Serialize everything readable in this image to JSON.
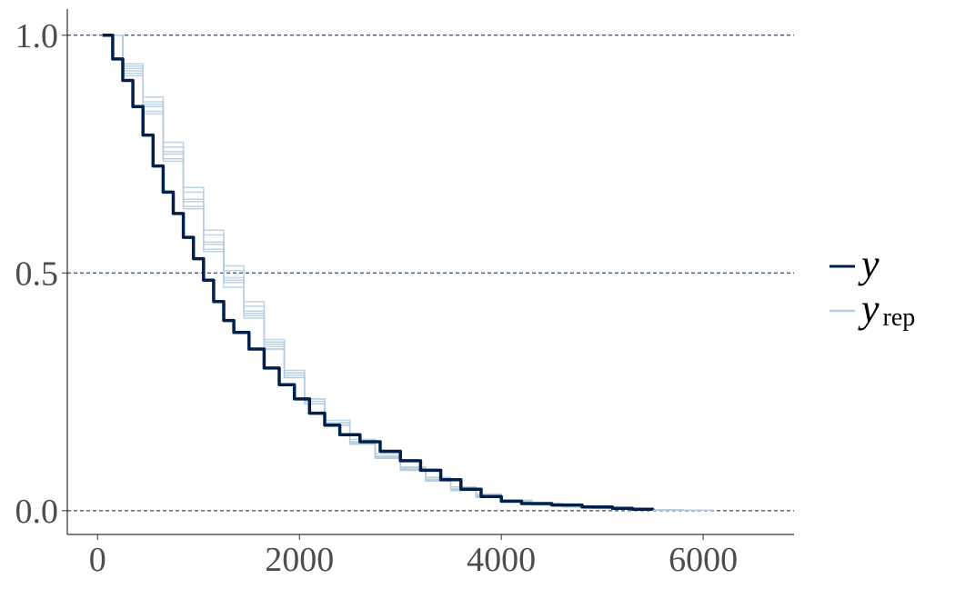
{
  "chart_data": {
    "type": "line",
    "title": "",
    "xlabel": "",
    "ylabel": "",
    "xlim": [
      -300,
      6900
    ],
    "ylim": [
      -0.05,
      1.055
    ],
    "x_ticks": [
      0,
      2000,
      4000,
      6000
    ],
    "x_tick_labels": [
      "0",
      "2000",
      "4000",
      "6000"
    ],
    "y_ticks": [
      0.0,
      0.5,
      1.0
    ],
    "y_tick_labels": [
      "0.0",
      "0.5",
      "1.0"
    ],
    "hlines": [
      0.0,
      0.5,
      1.0
    ],
    "hline_style": "dashed",
    "grid": false,
    "legend_position": "right",
    "colors": {
      "y": "#011f4b",
      "yrep": "#b3cde0",
      "hline": "#011f4b",
      "axis": "#000000",
      "tick_text": "#4d4d4d"
    },
    "legend": [
      {
        "key": "y",
        "label_main": "y",
        "label_sub": ""
      },
      {
        "key": "yrep",
        "label_main": "y",
        "label_sub": "rep"
      }
    ],
    "series": [
      {
        "key": "y",
        "x": [
          50,
          150,
          250,
          350,
          450,
          550,
          650,
          750,
          850,
          950,
          1050,
          1150,
          1250,
          1350,
          1500,
          1650,
          1800,
          1950,
          2100,
          2250,
          2400,
          2600,
          2800,
          3000,
          3200,
          3400,
          3600,
          3800,
          4000,
          4200,
          4500,
          4800,
          5100,
          5300,
          5500
        ],
        "y": [
          1.0,
          0.95,
          0.905,
          0.85,
          0.79,
          0.725,
          0.67,
          0.625,
          0.575,
          0.53,
          0.485,
          0.44,
          0.4,
          0.375,
          0.34,
          0.3,
          0.265,
          0.235,
          0.205,
          0.18,
          0.16,
          0.145,
          0.125,
          0.105,
          0.085,
          0.065,
          0.045,
          0.03,
          0.02,
          0.015,
          0.012,
          0.008,
          0.005,
          0.003,
          0.002
        ]
      },
      {
        "key": "yrep",
        "x": [
          50,
          250,
          450,
          650,
          850,
          1050,
          1250,
          1450,
          1650,
          1850,
          2050,
          2250,
          2500,
          2750,
          3000,
          3250,
          3500,
          3750,
          4000,
          4300,
          4600,
          4900,
          5200,
          5500,
          5800,
          6100
        ],
        "y": [
          1.0,
          0.92,
          0.84,
          0.74,
          0.64,
          0.55,
          0.48,
          0.41,
          0.34,
          0.28,
          0.225,
          0.18,
          0.14,
          0.115,
          0.085,
          0.065,
          0.045,
          0.03,
          0.02,
          0.013,
          0.009,
          0.006,
          0.003,
          0.002,
          0.001,
          0.0
        ]
      },
      {
        "key": "yrep",
        "x": [
          50,
          250,
          450,
          650,
          850,
          1050,
          1250,
          1450,
          1650,
          1850,
          2050,
          2250,
          2500,
          2750,
          3000,
          3250,
          3500,
          3750,
          4000,
          4300,
          4600,
          4900,
          5200,
          5500,
          5800,
          6100
        ],
        "y": [
          1.0,
          0.935,
          0.86,
          0.765,
          0.67,
          0.58,
          0.505,
          0.43,
          0.355,
          0.29,
          0.23,
          0.185,
          0.145,
          0.115,
          0.09,
          0.07,
          0.05,
          0.035,
          0.022,
          0.015,
          0.01,
          0.006,
          0.004,
          0.002,
          0.001,
          0.0
        ]
      },
      {
        "key": "yrep",
        "x": [
          50,
          250,
          450,
          650,
          850,
          1050,
          1250,
          1450,
          1650,
          1850,
          2050,
          2250,
          2500,
          2750,
          3000,
          3250,
          3500,
          3750,
          4000,
          4300,
          4600,
          4900,
          5200,
          5500,
          5800
        ],
        "y": [
          1.0,
          0.93,
          0.855,
          0.755,
          0.655,
          0.565,
          0.49,
          0.42,
          0.345,
          0.285,
          0.225,
          0.18,
          0.14,
          0.11,
          0.085,
          0.062,
          0.042,
          0.028,
          0.018,
          0.012,
          0.008,
          0.005,
          0.003,
          0.001,
          0.0
        ]
      },
      {
        "key": "yrep",
        "x": [
          50,
          250,
          450,
          650,
          850,
          1050,
          1250,
          1450,
          1650,
          1850,
          2050,
          2250,
          2500,
          2750,
          3000,
          3250,
          3500,
          3750,
          4000,
          4300,
          4600,
          4900,
          5200,
          5500,
          5800
        ],
        "y": [
          1.0,
          0.925,
          0.85,
          0.75,
          0.65,
          0.56,
          0.485,
          0.415,
          0.35,
          0.29,
          0.235,
          0.19,
          0.15,
          0.12,
          0.092,
          0.07,
          0.05,
          0.033,
          0.021,
          0.014,
          0.009,
          0.006,
          0.003,
          0.002,
          0.0
        ]
      },
      {
        "key": "yrep",
        "x": [
          50,
          250,
          450,
          650,
          850,
          1050,
          1250,
          1450,
          1650,
          1850,
          2050,
          2250,
          2500,
          2750,
          3000,
          3250,
          3500,
          3750,
          4000,
          4300,
          4600,
          4900,
          5200,
          5500,
          5800,
          6000
        ],
        "y": [
          1.0,
          0.94,
          0.87,
          0.775,
          0.68,
          0.59,
          0.515,
          0.44,
          0.36,
          0.295,
          0.235,
          0.185,
          0.145,
          0.112,
          0.088,
          0.066,
          0.046,
          0.031,
          0.02,
          0.013,
          0.009,
          0.005,
          0.003,
          0.002,
          0.001,
          0.0
        ]
      },
      {
        "key": "yrep",
        "x": [
          50,
          250,
          450,
          650,
          850,
          1050,
          1250,
          1450,
          1650,
          1850,
          2050,
          2250,
          2500,
          2750,
          3000,
          3250,
          3500,
          3750,
          4000,
          4300,
          4600,
          4900,
          5200,
          5500,
          5800
        ],
        "y": [
          1.0,
          0.915,
          0.835,
          0.735,
          0.635,
          0.545,
          0.47,
          0.405,
          0.34,
          0.28,
          0.225,
          0.18,
          0.142,
          0.11,
          0.085,
          0.063,
          0.044,
          0.029,
          0.019,
          0.012,
          0.008,
          0.005,
          0.003,
          0.001,
          0.0
        ]
      }
    ]
  }
}
